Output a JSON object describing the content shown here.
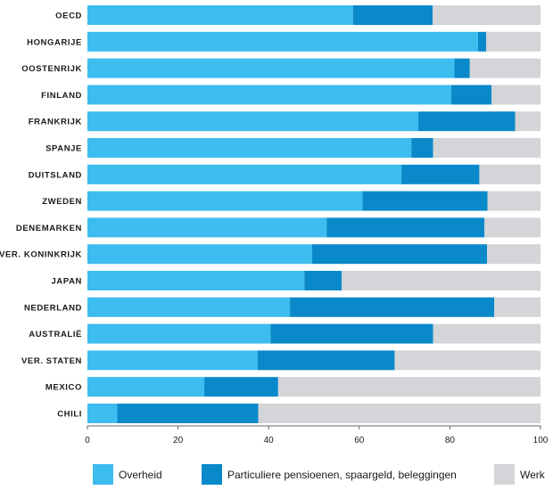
{
  "chart_data": {
    "type": "bar",
    "orientation": "horizontal",
    "stacked": true,
    "title": "",
    "xlabel": "",
    "ylabel": "",
    "xlim": [
      0,
      100
    ],
    "xticks": [
      "0",
      "20",
      "40",
      "60",
      "80",
      "100"
    ],
    "categories": [
      "OECD",
      "HONGARIJE",
      "OOSTENRIJK",
      "FINLAND",
      "FRANKRIJK",
      "SPANJE",
      "DUITSLAND",
      "ZWEDEN",
      "DENEMARKEN",
      "VER. KONINKRIJK",
      "JAPAN",
      "NEDERLAND",
      "AUSTRALIË",
      "VER. STATEN",
      "MEXICO",
      "CHILI"
    ],
    "series": [
      {
        "name": "Overheid",
        "color": "#3dbcef",
        "values": [
          58.6,
          86.2,
          81.0,
          80.3,
          73.0,
          71.5,
          69.3,
          60.7,
          52.8,
          49.6,
          47.9,
          44.7,
          40.4,
          37.6,
          25.8,
          6.6
        ]
      },
      {
        "name": "Particuliere pensioenen, spaargeld, beleggingen",
        "color": "#0a89ca",
        "values": [
          17.6,
          1.8,
          3.4,
          8.9,
          21.4,
          4.8,
          17.2,
          27.6,
          34.8,
          38.6,
          8.2,
          45.1,
          35.9,
          30.2,
          16.3,
          31.1
        ]
      },
      {
        "name": "Werk",
        "color": "#d3d5d8",
        "values": [
          23.8,
          12.0,
          15.6,
          10.8,
          5.6,
          23.7,
          13.5,
          11.7,
          12.4,
          11.8,
          43.9,
          10.2,
          23.7,
          32.2,
          57.9,
          62.3
        ]
      }
    ],
    "legend": {
      "position": "bottom"
    },
    "grid": false
  }
}
